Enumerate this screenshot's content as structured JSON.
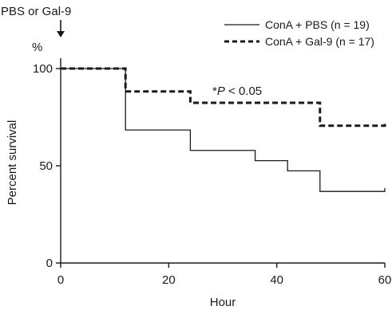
{
  "chart_data": {
    "type": "line",
    "step": true,
    "xlabel": "Hour",
    "ylabel": "Percent survival",
    "yunit": "%",
    "xlim": [
      0,
      60
    ],
    "ylim": [
      0,
      100
    ],
    "xticks": [
      0,
      20,
      40,
      60
    ],
    "yticks": [
      0,
      50,
      100
    ],
    "grid": false,
    "legend_position": "top-right",
    "series": [
      {
        "name": "ConA + PBS (n = 19)",
        "style": "solid",
        "x": [
          0,
          12,
          24,
          36,
          42,
          48,
          60
        ],
        "y": [
          100,
          68.4,
          57.9,
          52.6,
          47.4,
          36.8,
          36.8
        ],
        "end_tick": [
          60,
          38.5
        ]
      },
      {
        "name": "ConA + Gal-9 (n = 17)",
        "style": "dashed",
        "x": [
          0,
          12,
          24,
          48,
          60
        ],
        "y": [
          100,
          88.2,
          82.4,
          70.6,
          70.6
        ],
        "end_tick": [
          60,
          72.5
        ]
      }
    ],
    "annotations": {
      "treatment": "PBS or Gal-9",
      "significance_prefix": "*",
      "significance_p": "P",
      "significance_rest": " < 0.05"
    }
  }
}
